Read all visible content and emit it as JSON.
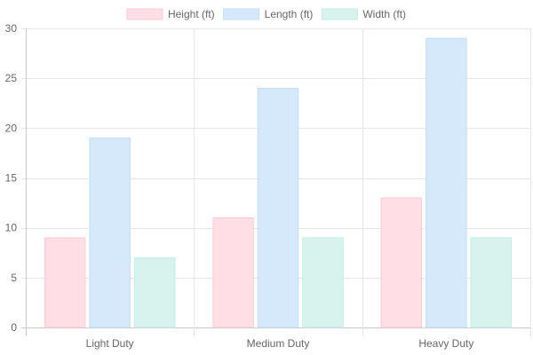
{
  "chart_data": {
    "type": "bar",
    "categories": [
      "Light Duty",
      "Medium Duty",
      "Heavy Duty"
    ],
    "series": [
      {
        "name": "Height (ft)",
        "values": [
          9,
          11,
          13
        ],
        "fill": "#ffdfe5",
        "stroke": "#ffc9d3"
      },
      {
        "name": "Length (ft)",
        "values": [
          19,
          24,
          29
        ],
        "fill": "#d5e9fa",
        "stroke": "#bfdef7"
      },
      {
        "name": "Width (ft)",
        "values": [
          7,
          9,
          9
        ],
        "fill": "#d8f2ee",
        "stroke": "#c4ebe5"
      }
    ],
    "yticks": [
      0,
      5,
      10,
      15,
      20,
      25,
      30
    ],
    "ylim": [
      0,
      30
    ],
    "grid": true,
    "legend_position": "top-center",
    "title": "",
    "xlabel": "",
    "ylabel": ""
  }
}
